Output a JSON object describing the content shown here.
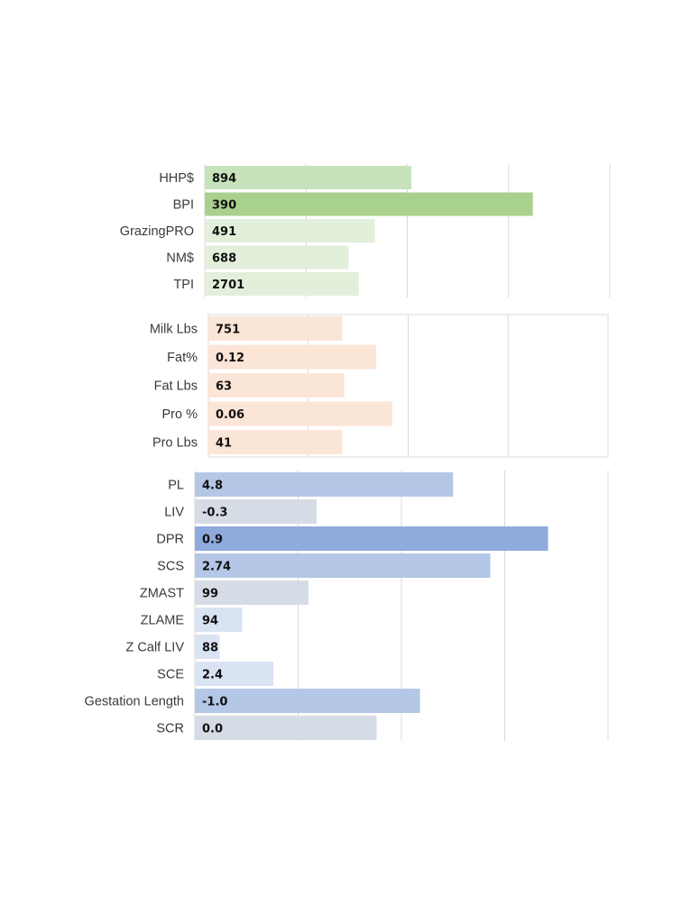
{
  "chart_data": [
    {
      "type": "bar",
      "orientation": "horizontal",
      "categories": [
        "HHP$",
        "BPI",
        "GrazingPRO",
        "NM$",
        "TPI"
      ],
      "values": [
        "894",
        "390",
        "491",
        "688",
        "2701"
      ],
      "bar_level": [
        0.51,
        0.81,
        0.42,
        0.355,
        0.38
      ],
      "colors": [
        "#c7e3bc",
        "#a9d18e",
        "#e2efda",
        "#e2efda",
        "#e2efda"
      ],
      "grid": true,
      "border": false
    },
    {
      "type": "bar",
      "orientation": "horizontal",
      "categories": [
        "Milk Lbs",
        "Fat%",
        "Fat Lbs",
        "Pro %",
        "Pro Lbs"
      ],
      "values": [
        "751",
        "0.12",
        "63",
        "0.06",
        "41"
      ],
      "bar_level": [
        0.335,
        0.42,
        0.34,
        0.46,
        0.335
      ],
      "colors": [
        "#fbe5d6",
        "#fbe5d6",
        "#fbe5d6",
        "#fbe5d6",
        "#fbe5d6"
      ],
      "grid": true,
      "border": true
    },
    {
      "type": "bar",
      "orientation": "horizontal",
      "categories": [
        "PL",
        "LIV",
        "DPR",
        "SCS",
        "ZMAST",
        "ZLAME",
        "Z Calf LIV",
        "SCE",
        "Gestation Length",
        "SCR"
      ],
      "values": [
        "4.8",
        "-0.3",
        "0.9",
        "2.74",
        "99",
        "94",
        "88",
        "2.4",
        "-1.0",
        "0.0"
      ],
      "bar_level": [
        0.625,
        0.295,
        0.855,
        0.715,
        0.275,
        0.115,
        0.06,
        0.19,
        0.545,
        0.44
      ],
      "colors": [
        "#b4c7e7",
        "#d6dce5",
        "#8faadc",
        "#b4c7e7",
        "#d6dce5",
        "#dae3f3",
        "#dae3f3",
        "#dae3f3",
        "#b4c7e7",
        "#d6dce5"
      ],
      "grid": true,
      "border": false
    }
  ]
}
